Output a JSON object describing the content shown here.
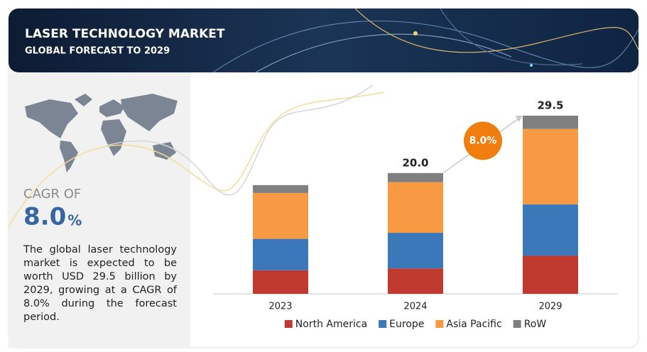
{
  "header": {
    "title": "LASER TECHNOLOGY MARKET",
    "subtitle": "GLOBAL FORECAST TO 2029"
  },
  "summary": {
    "cagr_label": "CAGR OF",
    "cagr_value": "8.0",
    "cagr_unit": "%",
    "text": "The global laser technology market is expected to be worth USD 29.5 billion by 2029, growing at a CAGR of 8.0% during the forecast period."
  },
  "chart_data": {
    "type": "stacked_bar",
    "categories": [
      "2023",
      "2024",
      "2029"
    ],
    "series": [
      {
        "name": "North America",
        "color": "#c0392e",
        "values": [
          3.9,
          4.2,
          6.3
        ]
      },
      {
        "name": "Europe",
        "color": "#3a78b9",
        "values": [
          5.2,
          5.9,
          8.5
        ]
      },
      {
        "name": "Asia Pacific",
        "color": "#f79a43",
        "values": [
          7.6,
          8.4,
          12.5
        ]
      },
      {
        "name": "RoW",
        "color": "#808080",
        "values": [
          1.3,
          1.5,
          2.2
        ]
      }
    ],
    "totals": [
      null,
      20,
      29.5
    ],
    "total_labels": [
      null,
      "20.0",
      "29.5"
    ],
    "cagr_badge": "8.0%",
    "legend": "bottom"
  }
}
